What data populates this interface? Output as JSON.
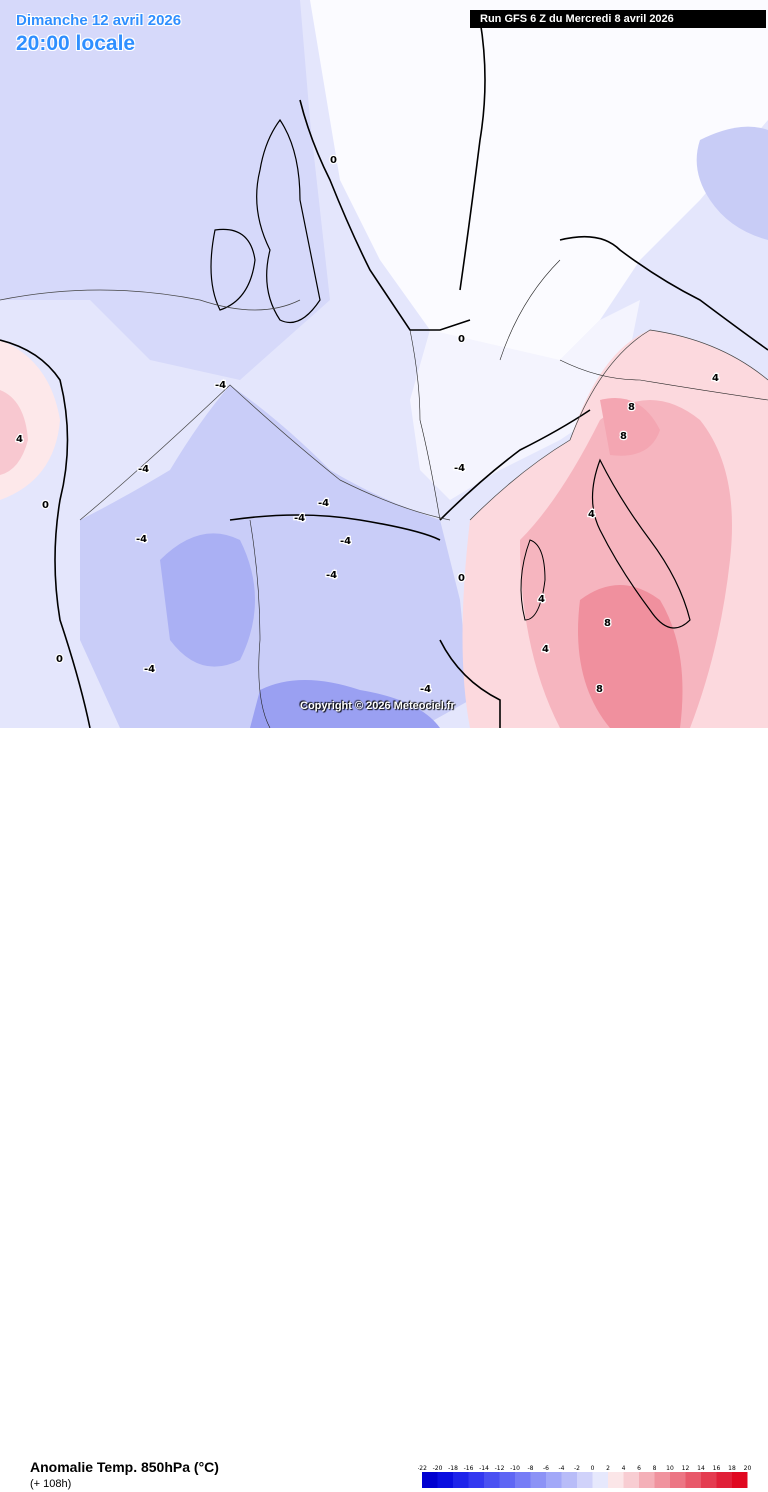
{
  "header": {
    "date": "Dimanche 12 avril 2026",
    "time": "20:00 locale",
    "run": "Run GFS 6 Z du Mercredi 8 avril 2026"
  },
  "watermark": "Copyright © 2026 Meteociel.fr",
  "footer": {
    "parameter": "Anomalie Temp. 850hPa (°C)",
    "lead": "(+ 108h)"
  },
  "legend": {
    "ticks": [
      "-22",
      "-20",
      "-18",
      "-16",
      "-14",
      "-12",
      "-10",
      "-8",
      "-6",
      "-4",
      "-2",
      "0",
      "2",
      "4",
      "6",
      "8",
      "10",
      "12",
      "14",
      "16",
      "18",
      "20"
    ],
    "colors": [
      "#0000d0",
      "#0a0ee0",
      "#1e24ea",
      "#3338f0",
      "#4a50f2",
      "#5f66f4",
      "#767cf6",
      "#8c92f6",
      "#a2a8f8",
      "#b8bcf8",
      "#d0d2fa",
      "#e6e8fc",
      "#fbe6e8",
      "#f8cdd2",
      "#f4b0b8",
      "#f0939e",
      "#ec7684",
      "#e8596a",
      "#e43c50",
      "#e02038",
      "#e00820"
    ]
  },
  "isotherm_labels": [
    {
      "text": "-4"
    },
    {
      "text": "-4"
    },
    {
      "text": "-4"
    },
    {
      "text": "-4"
    },
    {
      "text": "-4"
    },
    {
      "text": "-4"
    },
    {
      "text": "-4"
    },
    {
      "text": "-4"
    },
    {
      "text": "-4"
    },
    {
      "text": "-4"
    },
    {
      "text": "0"
    },
    {
      "text": "0"
    },
    {
      "text": "0"
    },
    {
      "text": "0"
    },
    {
      "text": "0"
    },
    {
      "text": "4"
    },
    {
      "text": "4"
    },
    {
      "text": "4"
    },
    {
      "text": "4"
    },
    {
      "text": "4"
    },
    {
      "text": "8"
    },
    {
      "text": "8"
    },
    {
      "text": "8"
    },
    {
      "text": "8"
    }
  ]
}
